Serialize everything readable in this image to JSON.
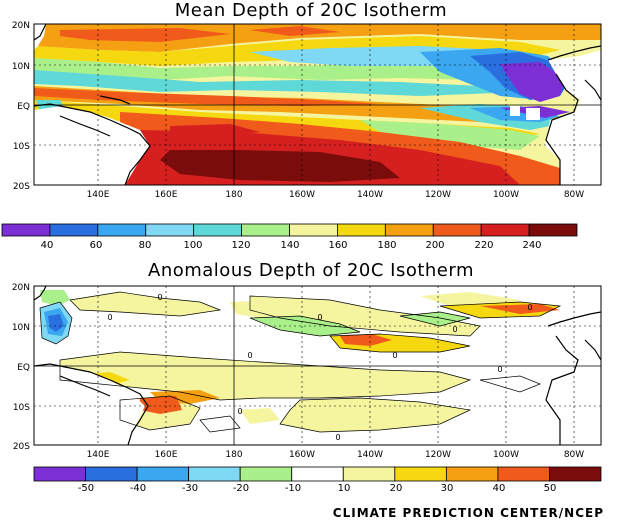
{
  "panel_mean": {
    "title": "Mean Depth of 20C Isotherm",
    "lat_labels": [
      "20N",
      "10N",
      "EQ",
      "10S",
      "20S"
    ],
    "lon_labels": [
      "140E",
      "160E",
      "180",
      "160W",
      "140W",
      "120W",
      "100W",
      "80W"
    ]
  },
  "panel_anom": {
    "title": "Anomalous Depth of 20C Isotherm",
    "lat_labels": [
      "20N",
      "10N",
      "EQ",
      "10S",
      "20S"
    ],
    "lon_labels": [
      "140E",
      "160E",
      "180",
      "160W",
      "140W",
      "120W",
      "100W",
      "80W"
    ]
  },
  "colorbar_mean": {
    "labels": [
      "40",
      "60",
      "80",
      "100",
      "120",
      "140",
      "160",
      "180",
      "200",
      "220",
      "240"
    ],
    "colors": [
      "#7d2fd6",
      "#2a6fe0",
      "#3aa7f0",
      "#7fd8f4",
      "#5fd8d8",
      "#aaf08a",
      "#f5f5a0",
      "#f5d80f",
      "#f5a012",
      "#f05a1a",
      "#d62020",
      "#7a0c0c"
    ]
  },
  "colorbar_anom": {
    "labels": [
      "-50",
      "-40",
      "-30",
      "-20",
      "-10",
      "10",
      "20",
      "30",
      "40",
      "50"
    ],
    "colors": [
      "#7d2fd6",
      "#2a6fe0",
      "#3aa7f0",
      "#7fd8f4",
      "#aaf08a",
      "#ffffff",
      "#f5f5a0",
      "#f5d80f",
      "#f5a012",
      "#f05a1a",
      "#7a0c0c"
    ]
  },
  "map_contour_labels": [
    "0",
    "0",
    "0",
    "0",
    "0",
    "0",
    "0",
    "0",
    "0",
    "0"
  ],
  "credit": "CLIMATE PREDICTION CENTER/NCEP"
}
